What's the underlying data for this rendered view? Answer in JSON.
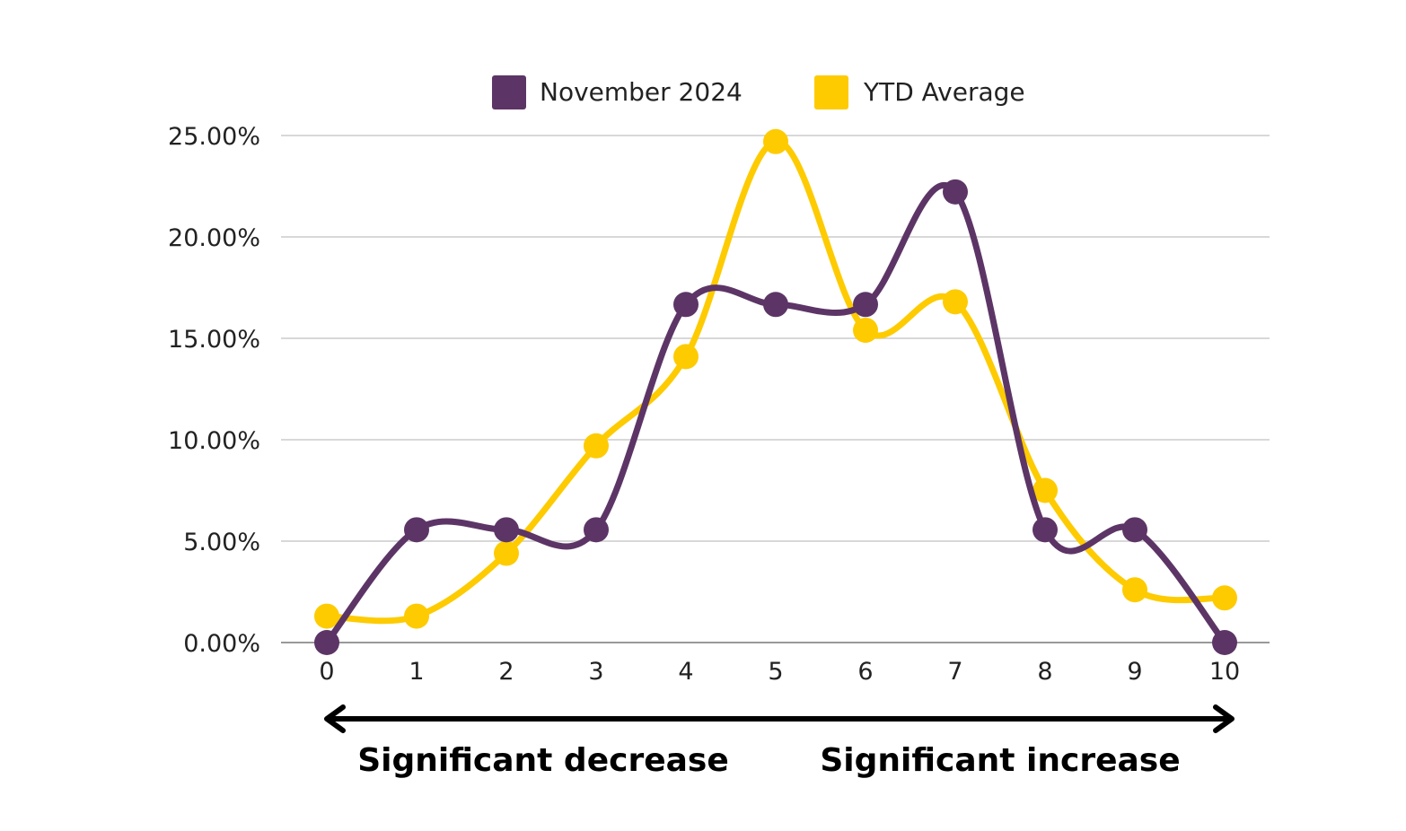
{
  "chart_data": {
    "type": "line",
    "smooth": true,
    "x": [
      "0",
      "1",
      "2",
      "3",
      "4",
      "5",
      "6",
      "7",
      "8",
      "9",
      "10"
    ],
    "series": [
      {
        "name": "November 2024",
        "color": "#5c3566",
        "values": [
          0.0,
          5.56,
          5.56,
          5.56,
          16.67,
          16.67,
          16.67,
          22.22,
          5.56,
          5.56,
          0.0
        ]
      },
      {
        "name": "YTD Average",
        "color": "#fdcb00",
        "values": [
          1.3,
          1.3,
          4.4,
          9.7,
          14.1,
          24.7,
          15.4,
          16.8,
          7.5,
          2.6,
          2.2
        ]
      }
    ],
    "ylim": [
      0,
      25
    ],
    "yticks": [
      {
        "value": 0,
        "label": "0.00%"
      },
      {
        "value": 5,
        "label": "5.00%"
      },
      {
        "value": 10,
        "label": "10.00%"
      },
      {
        "value": 15,
        "label": "15.00%"
      },
      {
        "value": 20,
        "label": "20.00%"
      },
      {
        "value": 25,
        "label": "25.00%"
      }
    ],
    "grid": true,
    "grid_color": "#cccccc",
    "legend_position": "top",
    "annotations": {
      "left": "Significant decrease",
      "right": "Significant increase",
      "arrow": "double-headed"
    }
  }
}
